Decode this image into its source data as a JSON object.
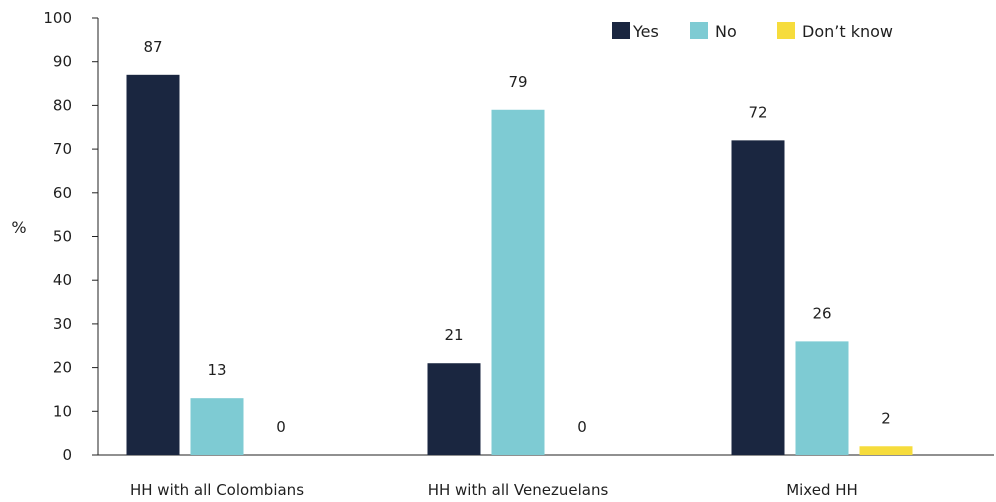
{
  "chart_data": {
    "type": "bar",
    "title": "",
    "xlabel": "",
    "ylabel": "%",
    "ylim": [
      0,
      100
    ],
    "yticks": [
      0,
      10,
      20,
      30,
      40,
      50,
      60,
      70,
      80,
      90,
      100
    ],
    "categories": [
      "HH with all Colombians",
      "HH with all Venezuelans",
      "Mixed HH"
    ],
    "series": [
      {
        "name": "Yes",
        "color": "#1a2640",
        "values": [
          87,
          21,
          72
        ]
      },
      {
        "name": "No",
        "color": "#7ecbd3",
        "values": [
          13,
          79,
          26
        ]
      },
      {
        "name": "Don’t know",
        "color": "#f6dc3c",
        "values": [
          0,
          0,
          2
        ]
      }
    ],
    "legend_position": "top-right",
    "grid": false
  }
}
